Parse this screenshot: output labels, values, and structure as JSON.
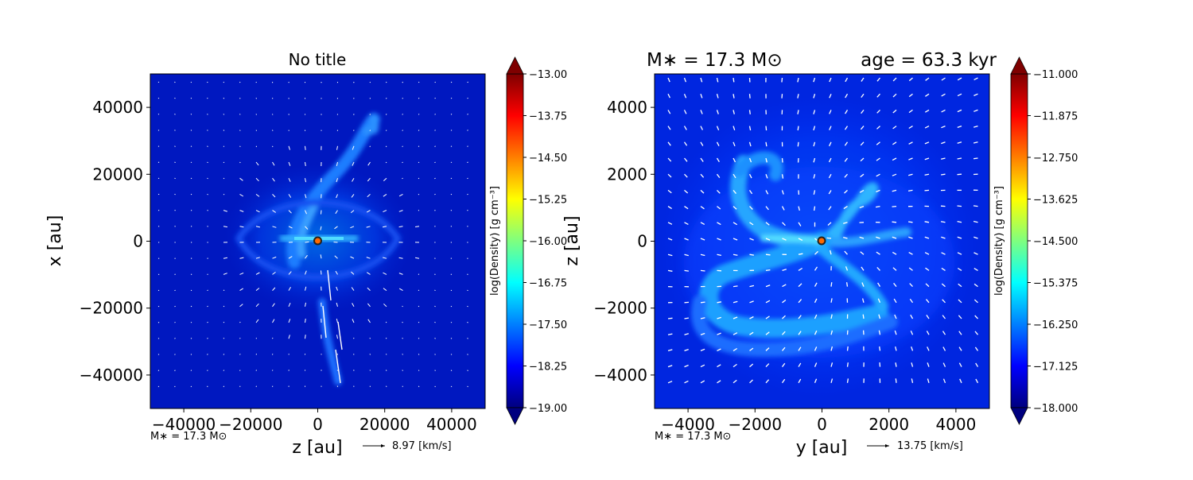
{
  "chart_data": [
    {
      "type": "heatmap",
      "title": "No title",
      "xlabel": "z [au]",
      "ylabel": "x [au]",
      "xlim": [
        -50000,
        50000
      ],
      "ylim": [
        -50000,
        50000
      ],
      "xticks": [
        -40000,
        -20000,
        0,
        20000,
        40000
      ],
      "xtick_labels": [
        "−40000",
        "−20000",
        "0",
        "20000",
        "40000"
      ],
      "yticks": [
        40000,
        20000,
        0,
        -20000,
        -40000
      ],
      "ytick_labels": [
        "40000",
        "20000",
        "0",
        "−20000",
        "−40000"
      ],
      "colorbar": {
        "label": "log(Density) [g cm⁻³]",
        "range": [
          -19.0,
          -13.0
        ],
        "ticks": [
          -13.0,
          -13.75,
          -14.5,
          -15.25,
          -16.0,
          -16.75,
          -17.5,
          -18.25,
          -19.0
        ],
        "tick_labels": [
          "−13.00",
          "−13.75",
          "−14.50",
          "−15.25",
          "−16.00",
          "−16.75",
          "−17.50",
          "−18.25",
          "−19.00"
        ]
      },
      "colormap": [
        "#00007f",
        "#0000ff",
        "#007fff",
        "#00ffff",
        "#7fff7f",
        "#ffff00",
        "#ff7f00",
        "#ff0000",
        "#7f0000"
      ],
      "star_position": [
        0,
        0
      ],
      "mass_note": "M∗ = 17.3 M⊙",
      "vector_key": "8.97 [km/s]"
    },
    {
      "type": "heatmap",
      "title_left": "M∗ = 17.3 M⊙",
      "title_right": "age = 63.3 kyr",
      "xlabel": "y [au]",
      "ylabel": "z [au]",
      "xlim": [
        -5000,
        5000
      ],
      "ylim": [
        -5000,
        5000
      ],
      "xticks": [
        -4000,
        -2000,
        0,
        2000,
        4000
      ],
      "xtick_labels": [
        "−4000",
        "−2000",
        "0",
        "2000",
        "4000"
      ],
      "yticks": [
        4000,
        2000,
        0,
        -2000,
        -4000
      ],
      "ytick_labels": [
        "4000",
        "2000",
        "0",
        "−2000",
        "−4000"
      ],
      "colorbar": {
        "label": "log(Density) [g cm⁻³]",
        "range": [
          -18.0,
          -11.0
        ],
        "ticks": [
          -11.0,
          -11.875,
          -12.75,
          -13.625,
          -14.5,
          -15.375,
          -16.25,
          -17.125,
          -18.0
        ],
        "tick_labels": [
          "−11.000",
          "−11.875",
          "−12.750",
          "−13.625",
          "−14.500",
          "−15.375",
          "−16.250",
          "−17.125",
          "−18.000"
        ]
      },
      "colormap": [
        "#00007f",
        "#0000ff",
        "#007fff",
        "#00ffff",
        "#7fff7f",
        "#ffff00",
        "#ff7f00",
        "#ff0000",
        "#7f0000"
      ],
      "star_position": [
        0,
        0
      ],
      "mass_note": "M∗ = 17.3 M⊙",
      "vector_key": "13.75 [km/s]"
    }
  ]
}
